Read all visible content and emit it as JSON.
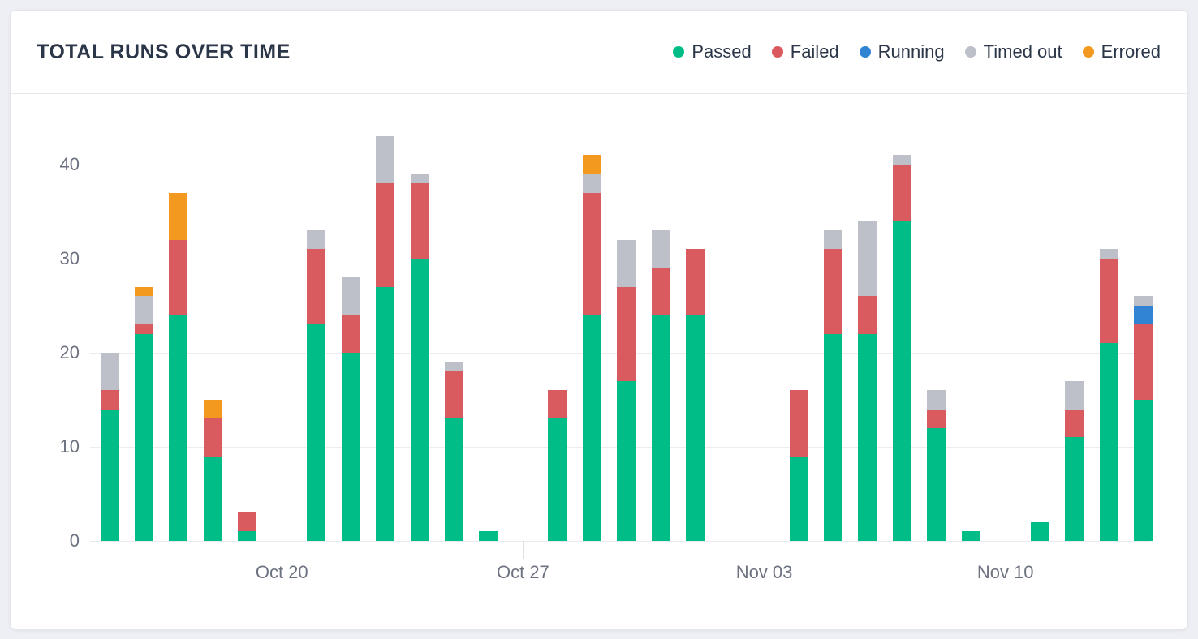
{
  "card": {
    "title": "TOTAL RUNS OVER TIME"
  },
  "chart_data": {
    "type": "bar",
    "stacked": true,
    "title": "TOTAL RUNS OVER TIME",
    "xlabel": "",
    "ylabel": "",
    "ylim": [
      0,
      44
    ],
    "yticks": [
      0,
      10,
      20,
      30,
      40
    ],
    "grid": true,
    "legend_position": "top-right",
    "series": [
      {
        "name": "Passed",
        "key": "passed",
        "color": "#00bd87"
      },
      {
        "name": "Failed",
        "key": "failed",
        "color": "#d95a5f"
      },
      {
        "name": "Running",
        "key": "running",
        "color": "#3183d4"
      },
      {
        "name": "Timed out",
        "key": "timed_out",
        "color": "#bdbfc9"
      },
      {
        "name": "Errored",
        "key": "errored",
        "color": "#f3991f"
      }
    ],
    "x_ticks": [
      {
        "day_index": 5,
        "label": "Oct 20"
      },
      {
        "day_index": 12,
        "label": "Oct 27"
      },
      {
        "day_index": 19,
        "label": "Nov 03"
      },
      {
        "day_index": 26,
        "label": "Nov 10"
      }
    ],
    "days": [
      {
        "date": "Oct 15",
        "passed": 14,
        "failed": 2,
        "running": 0,
        "timed_out": 4,
        "errored": 0
      },
      {
        "date": "Oct 16",
        "passed": 22,
        "failed": 1,
        "running": 0,
        "timed_out": 3,
        "errored": 1
      },
      {
        "date": "Oct 17",
        "passed": 24,
        "failed": 8,
        "running": 0,
        "timed_out": 0,
        "errored": 5
      },
      {
        "date": "Oct 18",
        "passed": 9,
        "failed": 4,
        "running": 0,
        "timed_out": 0,
        "errored": 2
      },
      {
        "date": "Oct 19",
        "passed": 1,
        "failed": 2,
        "running": 0,
        "timed_out": 0,
        "errored": 0
      },
      {
        "date": "Oct 20",
        "passed": 0,
        "failed": 0,
        "running": 0,
        "timed_out": 0,
        "errored": 0
      },
      {
        "date": "Oct 21",
        "passed": 23,
        "failed": 8,
        "running": 0,
        "timed_out": 2,
        "errored": 0
      },
      {
        "date": "Oct 22",
        "passed": 20,
        "failed": 4,
        "running": 0,
        "timed_out": 4,
        "errored": 0
      },
      {
        "date": "Oct 23",
        "passed": 27,
        "failed": 11,
        "running": 0,
        "timed_out": 5,
        "errored": 0
      },
      {
        "date": "Oct 24",
        "passed": 30,
        "failed": 8,
        "running": 0,
        "timed_out": 1,
        "errored": 0
      },
      {
        "date": "Oct 25",
        "passed": 13,
        "failed": 5,
        "running": 0,
        "timed_out": 1,
        "errored": 0
      },
      {
        "date": "Oct 26",
        "passed": 1,
        "failed": 0,
        "running": 0,
        "timed_out": 0,
        "errored": 0
      },
      {
        "date": "Oct 27",
        "passed": 0,
        "failed": 0,
        "running": 0,
        "timed_out": 0,
        "errored": 0
      },
      {
        "date": "Oct 28",
        "passed": 13,
        "failed": 3,
        "running": 0,
        "timed_out": 0,
        "errored": 0
      },
      {
        "date": "Oct 29",
        "passed": 24,
        "failed": 13,
        "running": 0,
        "timed_out": 2,
        "errored": 2
      },
      {
        "date": "Oct 30",
        "passed": 17,
        "failed": 10,
        "running": 0,
        "timed_out": 5,
        "errored": 0
      },
      {
        "date": "Oct 31",
        "passed": 24,
        "failed": 5,
        "running": 0,
        "timed_out": 4,
        "errored": 0
      },
      {
        "date": "Nov 01",
        "passed": 24,
        "failed": 7,
        "running": 0,
        "timed_out": 0,
        "errored": 0
      },
      {
        "date": "Nov 02",
        "passed": 0,
        "failed": 0,
        "running": 0,
        "timed_out": 0,
        "errored": 0
      },
      {
        "date": "Nov 03",
        "passed": 0,
        "failed": 0,
        "running": 0,
        "timed_out": 0,
        "errored": 0
      },
      {
        "date": "Nov 04",
        "passed": 9,
        "failed": 7,
        "running": 0,
        "timed_out": 0,
        "errored": 0
      },
      {
        "date": "Nov 05",
        "passed": 22,
        "failed": 9,
        "running": 0,
        "timed_out": 2,
        "errored": 0
      },
      {
        "date": "Nov 06",
        "passed": 22,
        "failed": 4,
        "running": 0,
        "timed_out": 8,
        "errored": 0
      },
      {
        "date": "Nov 07",
        "passed": 34,
        "failed": 6,
        "running": 0,
        "timed_out": 1,
        "errored": 0
      },
      {
        "date": "Nov 08",
        "passed": 12,
        "failed": 2,
        "running": 0,
        "timed_out": 2,
        "errored": 0
      },
      {
        "date": "Nov 09",
        "passed": 1,
        "failed": 0,
        "running": 0,
        "timed_out": 0,
        "errored": 0
      },
      {
        "date": "Nov 10",
        "passed": 0,
        "failed": 0,
        "running": 0,
        "timed_out": 0,
        "errored": 0
      },
      {
        "date": "Nov 11",
        "passed": 2,
        "failed": 0,
        "running": 0,
        "timed_out": 0,
        "errored": 0
      },
      {
        "date": "Nov 12",
        "passed": 11,
        "failed": 3,
        "running": 0,
        "timed_out": 3,
        "errored": 0
      },
      {
        "date": "Nov 13",
        "passed": 21,
        "failed": 9,
        "running": 0,
        "timed_out": 1,
        "errored": 0
      },
      {
        "date": "Nov 14",
        "passed": 15,
        "failed": 8,
        "running": 2,
        "timed_out": 1,
        "errored": 0
      }
    ]
  }
}
